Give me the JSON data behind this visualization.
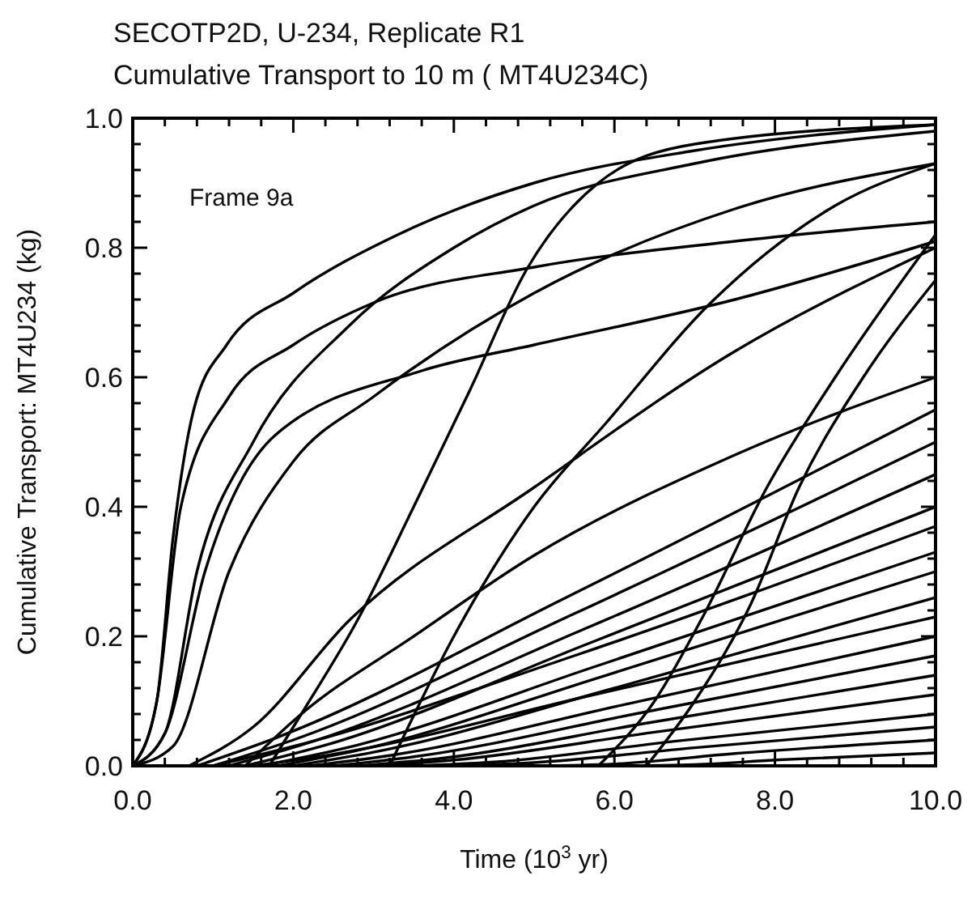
{
  "chart_data": {
    "type": "line",
    "title": "SECOTP2D, U-234, Replicate R1",
    "subtitle": "Cumulative Transport to 10 m ( MT4U234C)",
    "xlabel": "Time (10$^{3}$ yr)",
    "ylabel": "Cumulative Transport: MT4U234 (kg)",
    "annotations": [
      "Frame 9a"
    ],
    "xlim": [
      0,
      10
    ],
    "ylim": [
      0,
      1
    ],
    "xticks": [
      {
        "value": 0,
        "label": "0.0"
      },
      {
        "value": 0.4,
        "label": null
      },
      {
        "value": 0.8,
        "label": null
      },
      {
        "value": 1.2,
        "label": null
      },
      {
        "value": 1.6,
        "label": null
      },
      {
        "value": 2,
        "label": "2.0"
      },
      {
        "value": 2.4,
        "label": null
      },
      {
        "value": 2.8,
        "label": null
      },
      {
        "value": 3.2,
        "label": null
      },
      {
        "value": 3.6,
        "label": null
      },
      {
        "value": 4,
        "label": "4.0"
      },
      {
        "value": 4.4,
        "label": null
      },
      {
        "value": 4.8,
        "label": null
      },
      {
        "value": 5.2,
        "label": null
      },
      {
        "value": 5.6,
        "label": null
      },
      {
        "value": 6,
        "label": "6.0"
      },
      {
        "value": 6.4,
        "label": null
      },
      {
        "value": 6.8,
        "label": null
      },
      {
        "value": 7.2,
        "label": null
      },
      {
        "value": 7.6,
        "label": null
      },
      {
        "value": 8,
        "label": "8.0"
      },
      {
        "value": 8.4,
        "label": null
      },
      {
        "value": 8.8,
        "label": null
      },
      {
        "value": 9.2,
        "label": null
      },
      {
        "value": 9.6,
        "label": null
      },
      {
        "value": 10,
        "label": "10.0"
      }
    ],
    "yticks": [
      {
        "value": 0,
        "label": "0.0"
      },
      {
        "value": 0.04,
        "label": null
      },
      {
        "value": 0.08,
        "label": null
      },
      {
        "value": 0.12,
        "label": null
      },
      {
        "value": 0.16,
        "label": null
      },
      {
        "value": 0.2,
        "label": "0.2"
      },
      {
        "value": 0.24,
        "label": null
      },
      {
        "value": 0.28,
        "label": null
      },
      {
        "value": 0.32,
        "label": null
      },
      {
        "value": 0.36,
        "label": null
      },
      {
        "value": 0.4,
        "label": "0.4"
      },
      {
        "value": 0.44,
        "label": null
      },
      {
        "value": 0.48,
        "label": null
      },
      {
        "value": 0.52,
        "label": null
      },
      {
        "value": 0.56,
        "label": null
      },
      {
        "value": 0.6,
        "label": "0.6"
      },
      {
        "value": 0.64,
        "label": null
      },
      {
        "value": 0.68,
        "label": null
      },
      {
        "value": 0.72,
        "label": null
      },
      {
        "value": 0.76,
        "label": null
      },
      {
        "value": 0.8,
        "label": "0.8"
      },
      {
        "value": 0.84,
        "label": null
      },
      {
        "value": 0.88,
        "label": null
      },
      {
        "value": 0.92,
        "label": null
      },
      {
        "value": 0.96,
        "label": null
      },
      {
        "value": 1,
        "label": "1.0"
      }
    ],
    "series": [
      {
        "color": "#000000",
        "x": [
          0,
          0.3,
          0.5,
          0.76,
          1.17,
          2,
          3.3,
          5,
          7,
          10
        ],
        "values": [
          0,
          0.1,
          0.35,
          0.55,
          0.65,
          0.73,
          0.82,
          0.9,
          0.95,
          0.99
        ]
      },
      {
        "color": "#000000",
        "x": [
          0,
          0.4,
          0.8,
          1.5,
          2.7,
          4,
          5,
          7,
          10
        ],
        "values": [
          0,
          0.05,
          0.3,
          0.5,
          0.68,
          0.8,
          0.865,
          0.93,
          0.98
        ]
      },
      {
        "color": "#000000",
        "x": [
          0,
          0.3,
          0.6,
          1.2,
          2,
          3,
          5,
          7.5,
          10
        ],
        "values": [
          0,
          0.1,
          0.4,
          0.57,
          0.65,
          0.715,
          0.77,
          0.81,
          0.84
        ]
      },
      {
        "color": "#000000",
        "x": [
          0,
          0.4,
          0.9,
          1.77,
          3.6,
          5,
          7.5,
          10
        ],
        "values": [
          0,
          0.05,
          0.3,
          0.51,
          0.61,
          0.65,
          0.72,
          0.81
        ]
      },
      {
        "color": "#000000",
        "x": [
          0,
          0.5,
          1.2,
          2,
          3,
          5,
          7.5,
          10
        ],
        "values": [
          0,
          0.03,
          0.3,
          0.47,
          0.57,
          0.73,
          0.86,
          0.93
        ]
      },
      {
        "color": "#000000",
        "x": [
          1.7,
          2.1,
          2.8,
          3.5,
          4.2,
          4.9,
          5.8,
          7,
          10
        ],
        "values": [
          0,
          0.08,
          0.225,
          0.4,
          0.58,
          0.765,
          0.9,
          0.96,
          0.99
        ]
      },
      {
        "color": "#000000",
        "x": [
          3.2,
          4,
          5,
          5.9,
          7.2,
          8.75,
          10
        ],
        "values": [
          0,
          0.2,
          0.4,
          0.53,
          0.715,
          0.865,
          0.93
        ]
      },
      {
        "color": "#000000",
        "x": [
          5.8,
          6.5,
          7.1,
          7.9,
          8.75,
          10
        ],
        "values": [
          0,
          0.1,
          0.23,
          0.43,
          0.6,
          0.82
        ]
      },
      {
        "color": "#000000",
        "x": [
          6.4,
          7,
          7.7,
          8.3,
          9.1,
          10
        ],
        "values": [
          0,
          0.1,
          0.25,
          0.43,
          0.6,
          0.75
        ]
      },
      {
        "color": "#000000",
        "x": [
          0.7,
          1.5,
          2.7,
          5,
          7.5,
          10
        ],
        "values": [
          0,
          0.06,
          0.225,
          0.43,
          0.64,
          0.8
        ]
      },
      {
        "color": "#000000",
        "x": [
          1.4,
          2.1,
          3.5,
          5,
          7.5,
          10
        ],
        "values": [
          0,
          0.08,
          0.2,
          0.325,
          0.48,
          0.6
        ]
      },
      {
        "color": "#000000",
        "x": [
          0.8,
          1.8,
          5.4,
          10
        ],
        "values": [
          0,
          0.044,
          0.26,
          0.55
        ]
      },
      {
        "color": "#000000",
        "x": [
          1,
          2,
          5.5,
          10
        ],
        "values": [
          0,
          0.04,
          0.235,
          0.5
        ]
      },
      {
        "color": "#000000",
        "x": [
          1.2,
          2.2,
          5.6,
          10
        ],
        "values": [
          0,
          0.036,
          0.21,
          0.45
        ]
      },
      {
        "color": "#000000",
        "x": [
          1.4,
          2.4,
          5.7,
          10
        ],
        "values": [
          0,
          0.032,
          0.19,
          0.4
        ]
      },
      {
        "color": "#000000",
        "x": [
          1,
          2,
          5.5,
          10
        ],
        "values": [
          0,
          0.03,
          0.17,
          0.37
        ]
      },
      {
        "color": "#000000",
        "x": [
          1.6,
          2.6,
          5.8,
          10
        ],
        "values": [
          0,
          0.026,
          0.155,
          0.33
        ]
      },
      {
        "color": "#000000",
        "x": [
          1.8,
          2.8,
          5.9,
          10
        ],
        "values": [
          0,
          0.024,
          0.14,
          0.3
        ]
      },
      {
        "color": "#000000",
        "x": [
          2,
          3,
          6,
          10
        ],
        "values": [
          0,
          0.021,
          0.12,
          0.26
        ]
      },
      {
        "color": "#000000",
        "x": [
          1.5,
          2.5,
          5.75,
          10
        ],
        "values": [
          0,
          0.018,
          0.11,
          0.23
        ]
      },
      {
        "color": "#000000",
        "x": [
          2.2,
          3.2,
          6.1,
          10
        ],
        "values": [
          0,
          0.016,
          0.094,
          0.2
        ]
      },
      {
        "color": "#000000",
        "x": [
          2.5,
          3.5,
          6.25,
          10
        ],
        "values": [
          0,
          0.014,
          0.08,
          0.17
        ]
      },
      {
        "color": "#000000",
        "x": [
          2.8,
          3.8,
          6.4,
          10
        ],
        "values": [
          0,
          0.011,
          0.066,
          0.14
        ]
      },
      {
        "color": "#000000",
        "x": [
          3,
          4,
          6.5,
          10
        ],
        "values": [
          0,
          0.009,
          0.052,
          0.11
        ]
      },
      {
        "color": "#000000",
        "x": [
          3.5,
          4.5,
          6.75,
          10
        ],
        "values": [
          0,
          0.006,
          0.038,
          0.08
        ]
      },
      {
        "color": "#000000",
        "x": [
          4,
          5,
          7,
          10
        ],
        "values": [
          0,
          0.005,
          0.028,
          0.06
        ]
      },
      {
        "color": "#000000",
        "x": [
          5,
          6,
          7.5,
          10
        ],
        "values": [
          0,
          0.003,
          0.019,
          0.04
        ]
      },
      {
        "color": "#000000",
        "x": [
          6,
          7,
          8,
          10
        ],
        "values": [
          0,
          0.002,
          0.009,
          0.02
        ]
      }
    ]
  }
}
